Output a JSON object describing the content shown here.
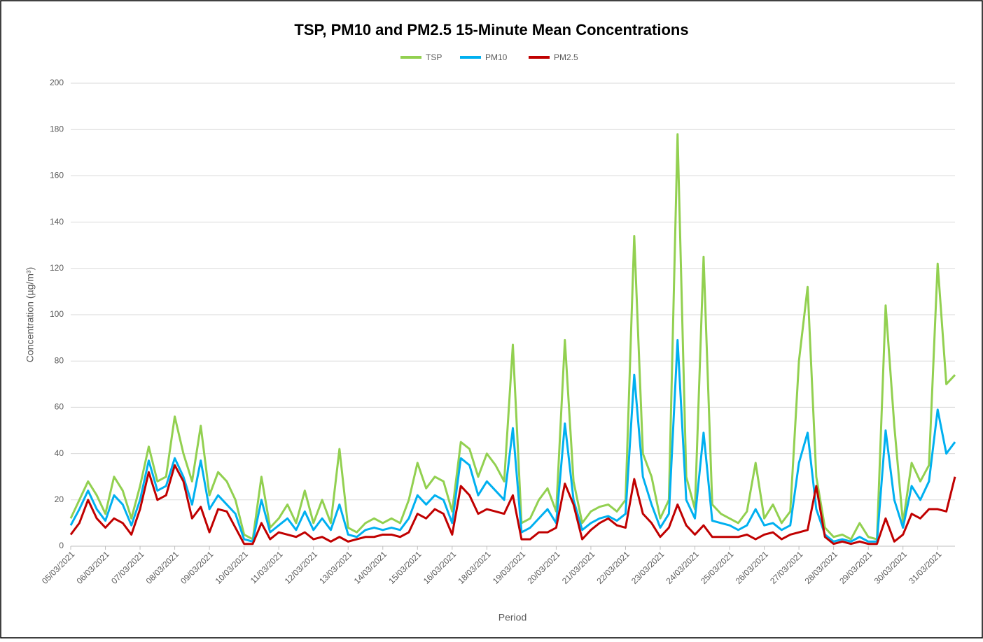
{
  "chart_data": {
    "type": "line",
    "title": "TSP, PM10 and PM2.5 15-Minute Mean Concentrations",
    "x_label": "Period",
    "y_label": "Concentration (µg/m³)",
    "categories": [
      "05/03/2021",
      null,
      null,
      null,
      "06/03/2021",
      null,
      null,
      null,
      "07/03/2021",
      null,
      null,
      null,
      "08/03/2021",
      null,
      null,
      null,
      "09/03/2021",
      null,
      null,
      null,
      "10/03/2021",
      null,
      null,
      null,
      "11/03/2021",
      null,
      null,
      null,
      "12/03/2021",
      null,
      null,
      null,
      "13/03/2021",
      null,
      null,
      null,
      "14/03/2021",
      null,
      null,
      null,
      "15/03/2021",
      null,
      null,
      null,
      "16/03/2021",
      null,
      null,
      null,
      "18/03/2021",
      null,
      null,
      null,
      "19/03/2021",
      null,
      null,
      null,
      "20/03/2021",
      null,
      null,
      null,
      "21/03/2021",
      null,
      null,
      null,
      "22/03/2021",
      null,
      null,
      null,
      "23/03/2021",
      null,
      null,
      null,
      "24/03/2021",
      null,
      null,
      null,
      "25/03/2021",
      null,
      null,
      null,
      "26/03/2021",
      null,
      null,
      null,
      "27/03/2021",
      null,
      null,
      null,
      "28/03/2021",
      null,
      null,
      null,
      "29/03/2021",
      null,
      null,
      null,
      "30/03/2021",
      null,
      null,
      null,
      "31/03/2021",
      null,
      null
    ],
    "series": [
      {
        "name": "TSP",
        "color": "#92d050",
        "values": [
          12,
          20,
          28,
          22,
          14,
          30,
          24,
          12,
          26,
          43,
          28,
          30,
          56,
          40,
          28,
          52,
          22,
          32,
          28,
          20,
          5,
          3,
          30,
          8,
          12,
          18,
          10,
          24,
          10,
          20,
          10,
          42,
          8,
          6,
          10,
          12,
          10,
          12,
          10,
          20,
          36,
          25,
          30,
          28,
          15,
          45,
          42,
          30,
          40,
          35,
          28,
          87,
          10,
          12,
          20,
          25,
          15,
          89,
          28,
          10,
          15,
          17,
          18,
          15,
          20,
          134,
          40,
          30,
          12,
          20,
          178,
          30,
          16,
          125,
          18,
          14,
          12,
          10,
          15,
          36,
          12,
          18,
          10,
          15,
          80,
          112,
          30,
          8,
          4,
          5,
          3,
          10,
          4,
          3,
          104,
          52,
          10,
          36,
          28,
          35,
          122,
          70,
          74
        ]
      },
      {
        "name": "PM10",
        "color": "#00b0f0",
        "values": [
          9,
          16,
          24,
          16,
          11,
          22,
          18,
          9,
          20,
          37,
          24,
          26,
          38,
          30,
          18,
          37,
          16,
          22,
          18,
          14,
          3,
          2,
          20,
          6,
          9,
          12,
          7,
          15,
          7,
          12,
          7,
          18,
          5,
          4,
          7,
          8,
          7,
          8,
          7,
          12,
          22,
          18,
          22,
          20,
          10,
          38,
          35,
          22,
          28,
          24,
          20,
          51,
          6,
          8,
          12,
          16,
          10,
          53,
          20,
          7,
          10,
          12,
          13,
          11,
          14,
          74,
          30,
          18,
          8,
          14,
          89,
          20,
          12,
          49,
          11,
          10,
          9,
          7,
          9,
          16,
          9,
          10,
          7,
          9,
          36,
          49,
          16,
          5,
          2,
          3,
          2,
          4,
          2,
          2,
          50,
          20,
          8,
          26,
          20,
          28,
          59,
          40,
          45
        ]
      },
      {
        "name": "PM2.5",
        "color": "#c00000",
        "values": [
          5,
          10,
          20,
          12,
          8,
          12,
          10,
          5,
          16,
          32,
          20,
          22,
          35,
          28,
          12,
          17,
          6,
          16,
          15,
          8,
          1,
          1,
          10,
          3,
          6,
          5,
          4,
          6,
          3,
          4,
          2,
          4,
          2,
          3,
          4,
          4,
          5,
          5,
          4,
          6,
          14,
          12,
          16,
          14,
          5,
          26,
          22,
          14,
          16,
          15,
          14,
          22,
          3,
          3,
          6,
          6,
          8,
          27,
          18,
          3,
          7,
          10,
          12,
          9,
          8,
          29,
          14,
          10,
          4,
          8,
          18,
          9,
          5,
          9,
          4,
          4,
          4,
          4,
          5,
          3,
          5,
          6,
          3,
          5,
          6,
          7,
          26,
          4,
          1,
          2,
          1,
          2,
          1,
          1,
          12,
          2,
          5,
          14,
          12,
          16,
          16,
          15,
          30
        ]
      }
    ],
    "ylim": [
      0,
      200
    ],
    "yticks": [
      0,
      20,
      40,
      60,
      80,
      100,
      120,
      140,
      160,
      180,
      200
    ],
    "grid": true,
    "legend": "top"
  }
}
